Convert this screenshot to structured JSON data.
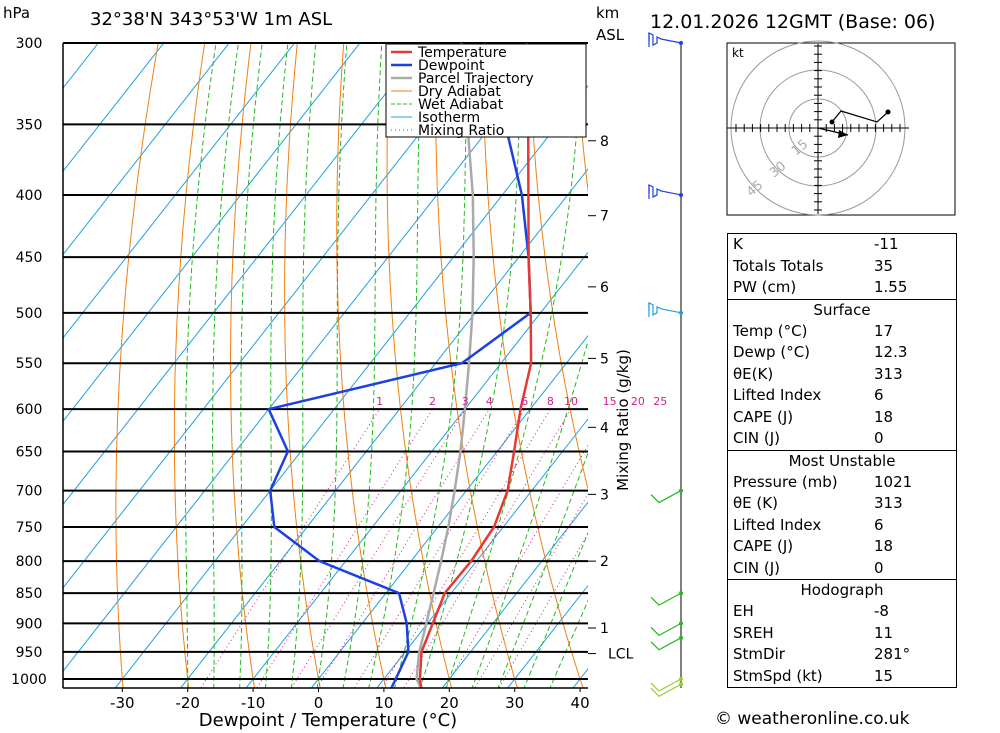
{
  "header": {
    "pressure_unit": "hPa",
    "location": "32°38'N  343°53'W  1m  ASL",
    "height_unit_1": "km",
    "height_unit_2": "ASL",
    "datetime": "12.01.2026  12GMT  (Base: 06)"
  },
  "chart_data": {
    "type": "line",
    "subtype": "skew-T log-P",
    "xlabel": "Dewpoint / Temperature (°C)",
    "ylabel": "hPa",
    "secondary_axis_label": "Mixing Ratio (g/kg)",
    "pressure_levels": [
      300,
      350,
      400,
      450,
      500,
      550,
      600,
      650,
      700,
      750,
      800,
      850,
      900,
      950,
      1000
    ],
    "temperature_ticks": [
      -30,
      -20,
      -10,
      0,
      10,
      20,
      30,
      40
    ],
    "height_km_ticks": [
      {
        "label": "8",
        "pressure": 361
      },
      {
        "label": "7",
        "pressure": 416
      },
      {
        "label": "6",
        "pressure": 476
      },
      {
        "label": "5",
        "pressure": 545
      },
      {
        "label": "4",
        "pressure": 621
      },
      {
        "label": "3",
        "pressure": 705
      },
      {
        "label": "2",
        "pressure": 800
      },
      {
        "label": "1",
        "pressure": 908
      },
      {
        "label": "LCL",
        "pressure": 953
      }
    ],
    "mixing_ratio_labels": [
      "1",
      "2",
      "3",
      "4",
      "6",
      "8",
      "10",
      "15",
      "20",
      "25"
    ],
    "mixing_ratio_values": [
      1,
      2,
      3,
      4,
      6,
      8,
      10,
      15,
      20,
      25
    ],
    "legend": [
      "Temperature",
      "Dewpoint",
      "Parcel Trajectory",
      "Dry Adiabat",
      "Wet Adiabat",
      "Isotherm",
      "Mixing Ratio"
    ],
    "series": [
      {
        "name": "Temperature",
        "points": [
          [
            1020,
            17
          ],
          [
            1000,
            15.5
          ],
          [
            950,
            12.5
          ],
          [
            900,
            10.8
          ],
          [
            850,
            9
          ],
          [
            800,
            9.2
          ],
          [
            750,
            8.6
          ],
          [
            700,
            6.3
          ],
          [
            650,
            2.6
          ],
          [
            600,
            -1.5
          ],
          [
            550,
            -5.4
          ],
          [
            500,
            -11.5
          ],
          [
            450,
            -18.5
          ],
          [
            400,
            -26
          ],
          [
            350,
            -34.5
          ],
          [
            300,
            -44.5
          ]
        ]
      },
      {
        "name": "Dewpoint",
        "points": [
          [
            1020,
            12.3
          ],
          [
            1000,
            11.8
          ],
          [
            950,
            10.5
          ],
          [
            900,
            6.8
          ],
          [
            850,
            2
          ],
          [
            800,
            -14
          ],
          [
            750,
            -25
          ],
          [
            700,
            -30
          ],
          [
            650,
            -32
          ],
          [
            600,
            -40
          ],
          [
            550,
            -16
          ],
          [
            500,
            -11.5
          ],
          [
            450,
            -18.5
          ],
          [
            400,
            -27
          ],
          [
            350,
            -38
          ],
          [
            300,
            -51
          ]
        ]
      },
      {
        "name": "Parcel Trajectory",
        "points": [
          [
            1020,
            17
          ],
          [
            1000,
            15
          ],
          [
            953,
            12.3
          ],
          [
            900,
            9.8
          ],
          [
            850,
            7.3
          ],
          [
            800,
            4.6
          ],
          [
            750,
            1.6
          ],
          [
            700,
            -1.8
          ],
          [
            650,
            -5.6
          ],
          [
            600,
            -10
          ],
          [
            550,
            -14.9
          ],
          [
            500,
            -20.4
          ],
          [
            450,
            -26.9
          ],
          [
            400,
            -34.5
          ],
          [
            350,
            -43.8
          ],
          [
            300,
            -54.5
          ]
        ]
      }
    ],
    "wind_barbs": [
      {
        "pressure": 300,
        "color": "blue"
      },
      {
        "pressure": 400,
        "color": "blue"
      },
      {
        "pressure": 500,
        "color": "cyan"
      },
      {
        "pressure": 700,
        "color": "green"
      },
      {
        "pressure": 850,
        "color": "green"
      },
      {
        "pressure": 900,
        "color": "green"
      },
      {
        "pressure": 925,
        "color": "green"
      },
      {
        "pressure": 1000,
        "color": "yellowgreen"
      },
      {
        "pressure": 1010,
        "color": "yellowgreen"
      }
    ],
    "colors": {
      "temperature": "#e53935",
      "dewpoint": "#1e40e0",
      "parcel": "#aaaaaa",
      "dry_adiabat": "#f08010",
      "wet_adiabat": "#22b822",
      "isotherm": "#20a0e0",
      "mixing_ratio": "#d0208c"
    }
  },
  "hodograph": {
    "unit_label": "kt",
    "ring_labels": [
      "15",
      "30",
      "45"
    ]
  },
  "indices": {
    "general": [
      {
        "label": "K",
        "value": "-11"
      },
      {
        "label": "Totals Totals",
        "value": "35"
      },
      {
        "label": "PW (cm)",
        "value": "1.55"
      }
    ],
    "surface": {
      "title": "Surface",
      "rows": [
        {
          "label": "Temp (°C)",
          "value": "17"
        },
        {
          "label": "Dewp (°C)",
          "value": "12.3"
        },
        {
          "label": "θE(K)",
          "value": "313"
        },
        {
          "label": "Lifted Index",
          "value": "6"
        },
        {
          "label": "CAPE (J)",
          "value": "18"
        },
        {
          "label": "CIN (J)",
          "value": "0"
        }
      ]
    },
    "most_unstable": {
      "title": "Most Unstable",
      "rows": [
        {
          "label": "Pressure (mb)",
          "value": "1021"
        },
        {
          "label": "θE (K)",
          "value": "313"
        },
        {
          "label": "Lifted Index",
          "value": "6"
        },
        {
          "label": "CAPE (J)",
          "value": "18"
        },
        {
          "label": "CIN (J)",
          "value": "0"
        }
      ]
    },
    "hodograph_section": {
      "title": "Hodograph",
      "rows": [
        {
          "label": "EH",
          "value": "-8"
        },
        {
          "label": "SREH",
          "value": "11"
        },
        {
          "label": "StmDir",
          "value": "281°"
        },
        {
          "label": "StmSpd (kt)",
          "value": "15"
        }
      ]
    }
  },
  "footer": {
    "credit": "© weatheronline.co.uk"
  }
}
